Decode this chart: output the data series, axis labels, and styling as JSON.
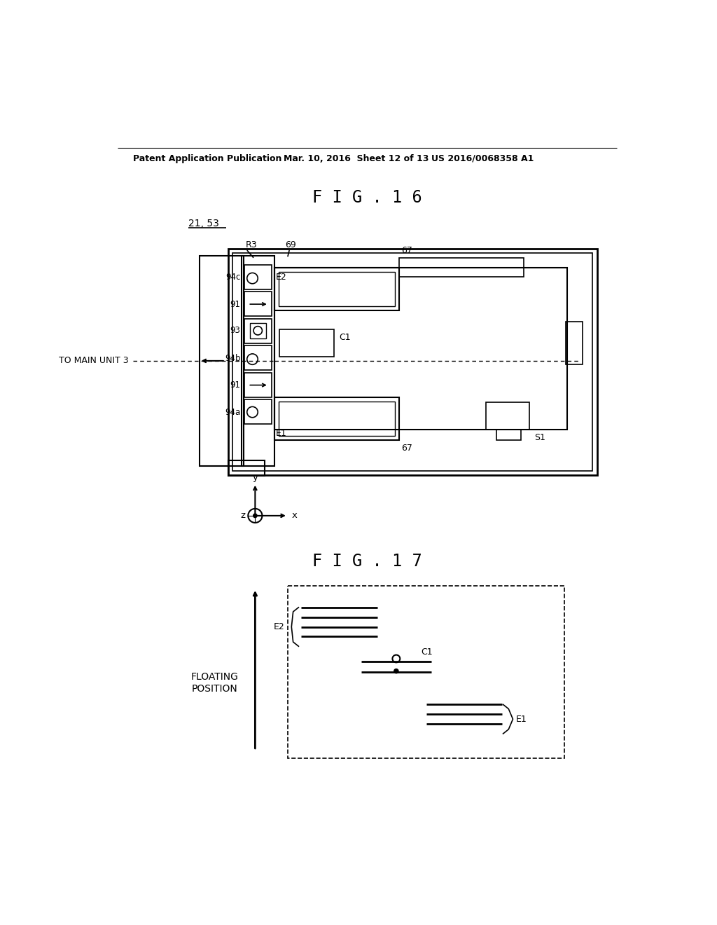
{
  "header_left": "Patent Application Publication",
  "header_mid": "Mar. 10, 2016  Sheet 12 of 13",
  "header_right": "US 2016/0068358 A1",
  "fig16_title": "F I G . 1 6",
  "fig17_title": "F I G . 1 7",
  "label_2153": "21, 53",
  "bg_color": "#ffffff",
  "line_color": "#000000"
}
